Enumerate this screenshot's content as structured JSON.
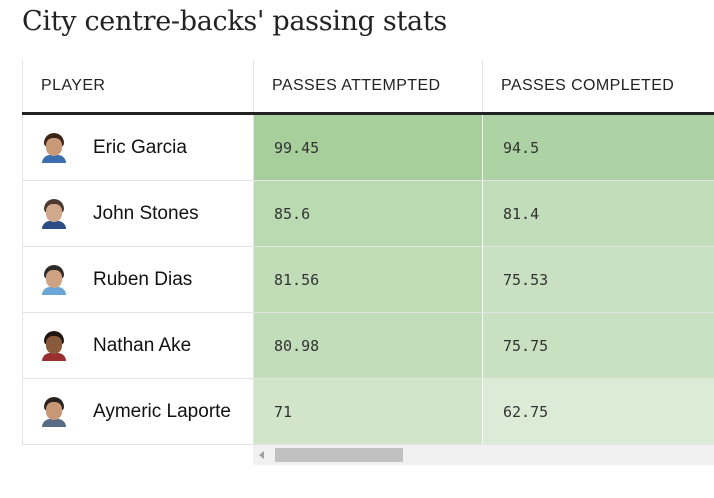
{
  "title": "City centre-backs' passing stats",
  "chart_data": {
    "type": "table",
    "title": "City centre-backs' passing stats",
    "columns": [
      "PLAYER",
      "PASSES ATTEMPTED",
      "PASSES COMPLETED"
    ],
    "rows": [
      {
        "player": "Eric Garcia",
        "attempted": "99.45",
        "completed": "94.5",
        "avatar": "player-avatar-icon"
      },
      {
        "player": "John Stones",
        "attempted": "85.6",
        "completed": "81.4",
        "avatar": "player-avatar-icon"
      },
      {
        "player": "Ruben Dias",
        "attempted": "81.56",
        "completed": "75.53",
        "avatar": "player-avatar-icon"
      },
      {
        "player": "Nathan Ake",
        "attempted": "80.98",
        "completed": "75.75",
        "avatar": "player-avatar-icon"
      },
      {
        "player": "Aymeric Laporte",
        "attempted": "71",
        "completed": "62.75",
        "avatar": "player-avatar-icon"
      }
    ],
    "heat_colors": {
      "low": "#dcebd6",
      "high": "#a6cf9c"
    }
  }
}
